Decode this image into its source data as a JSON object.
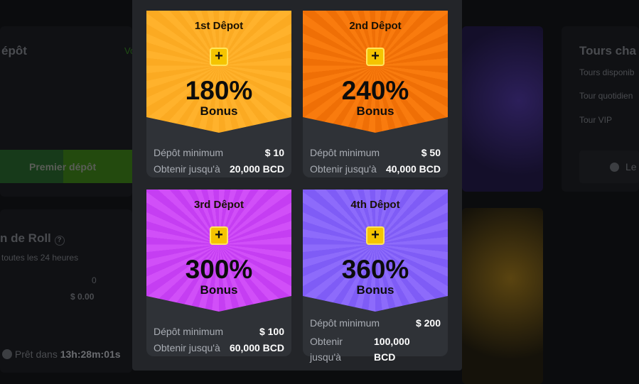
{
  "background": {
    "deposit_title": "épôt",
    "view_link": "Vo",
    "first_deposit_button": "Premier dépôt",
    "roll_title": "n de Roll",
    "roll_subtitle": "toutes les 24 heures",
    "roll_count": "0",
    "roll_amount": "$ 0.00",
    "ready_label": "Prêt dans",
    "ready_time": "13h:28m:01s",
    "tours_title": "Tours cha",
    "tours_available": "Tours disponib",
    "tour_daily": "Tour quotidien",
    "tour_vip": "Tour VIP",
    "tour_button": "Le"
  },
  "modal": {
    "cards": [
      {
        "title": "1st Dêpot",
        "percent": "180%",
        "bonus": "Bonus",
        "min_label": "Dépôt minimum",
        "min_value": "$ 10",
        "get_label": "Obtenir jusqu'à",
        "get_value": "20,000 BCD",
        "color": "#fbaa22"
      },
      {
        "title": "2nd Dêpot",
        "percent": "240%",
        "bonus": "Bonus",
        "min_label": "Dépôt minimum",
        "min_value": "$ 50",
        "get_label": "Obtenir jusqu'à",
        "get_value": "40,000 BCD",
        "color": "#ef6f06"
      },
      {
        "title": "3rd Dêpot",
        "percent": "300%",
        "bonus": "Bonus",
        "min_label": "Dépôt minimum",
        "min_value": "$ 100",
        "get_label": "Obtenir jusqu'à",
        "get_value": "60,000 BCD",
        "color": "#c53ef2"
      },
      {
        "title": "4th Dêpot",
        "percent": "360%",
        "bonus": "Bonus",
        "min_label": "Dépôt minimum",
        "min_value": "$ 200",
        "get_label": "Obtenir jusqu'à",
        "get_value": "100,000 BCD",
        "color": "#7f5cf6"
      }
    ]
  }
}
